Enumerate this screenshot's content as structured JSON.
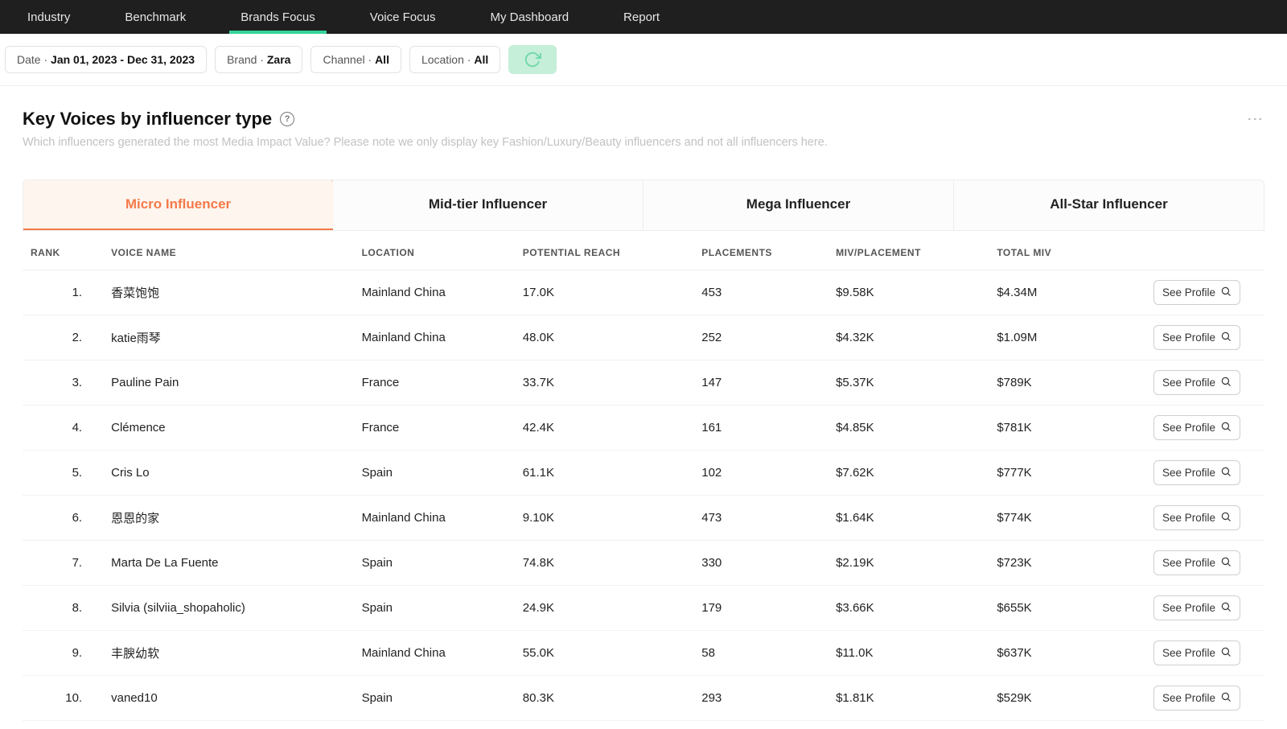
{
  "nav": {
    "items": [
      "Industry",
      "Benchmark",
      "Brands Focus",
      "Voice Focus",
      "My Dashboard",
      "Report"
    ],
    "active_index": 2
  },
  "filters": {
    "date": {
      "label": "Date",
      "value": "Jan 01, 2023 - Dec 31, 2023"
    },
    "brand": {
      "label": "Brand",
      "value": "Zara"
    },
    "channel": {
      "label": "Channel",
      "value": "All"
    },
    "location": {
      "label": "Location",
      "value": "All"
    }
  },
  "page": {
    "title": "Key Voices by influencer type",
    "subtitle": "Which influencers generated the most Media Impact Value? Please note we only display key Fashion/Luxury/Beauty influencers and not all influencers here."
  },
  "tabs": {
    "items": [
      "Micro Influencer",
      "Mid-tier Influencer",
      "Mega Influencer",
      "All-Star Influencer"
    ],
    "active_index": 0,
    "active_color": "#f37a49",
    "active_bg": "#fff5ef"
  },
  "table": {
    "columns": [
      "RANK",
      "VOICE NAME",
      "LOCATION",
      "POTENTIAL REACH",
      "PLACEMENTS",
      "MIV/PLACEMENT",
      "TOTAL MIV"
    ],
    "profile_button_label": "See Profile",
    "rows": [
      {
        "rank": "1.",
        "name": "香菜饱饱",
        "location": "Mainland China",
        "reach": "17.0K",
        "placements": "453",
        "miv_placement": "$9.58K",
        "total_miv": "$4.34M"
      },
      {
        "rank": "2.",
        "name": "katie雨琴",
        "location": "Mainland China",
        "reach": "48.0K",
        "placements": "252",
        "miv_placement": "$4.32K",
        "total_miv": "$1.09M"
      },
      {
        "rank": "3.",
        "name": "Pauline Pain",
        "location": "France",
        "reach": "33.7K",
        "placements": "147",
        "miv_placement": "$5.37K",
        "total_miv": "$789K"
      },
      {
        "rank": "4.",
        "name": "Clémence",
        "location": "France",
        "reach": "42.4K",
        "placements": "161",
        "miv_placement": "$4.85K",
        "total_miv": "$781K"
      },
      {
        "rank": "5.",
        "name": "Cris Lo",
        "location": "Spain",
        "reach": "61.1K",
        "placements": "102",
        "miv_placement": "$7.62K",
        "total_miv": "$777K"
      },
      {
        "rank": "6.",
        "name": "恩恩的家",
        "location": "Mainland China",
        "reach": "9.10K",
        "placements": "473",
        "miv_placement": "$1.64K",
        "total_miv": "$774K"
      },
      {
        "rank": "7.",
        "name": "Marta De La Fuente",
        "location": "Spain",
        "reach": "74.8K",
        "placements": "330",
        "miv_placement": "$2.19K",
        "total_miv": "$723K"
      },
      {
        "rank": "8.",
        "name": "Silvia (silviia_shopaholic)",
        "location": "Spain",
        "reach": "24.9K",
        "placements": "179",
        "miv_placement": "$3.66K",
        "total_miv": "$655K"
      },
      {
        "rank": "9.",
        "name": "丰腴幼软",
        "location": "Mainland China",
        "reach": "55.0K",
        "placements": "58",
        "miv_placement": "$11.0K",
        "total_miv": "$637K"
      },
      {
        "rank": "10.",
        "name": "vaned10",
        "location": "Spain",
        "reach": "80.3K",
        "placements": "293",
        "miv_placement": "$1.81K",
        "total_miv": "$529K"
      }
    ]
  },
  "colors": {
    "nav_bg": "#1f1f1f",
    "nav_active_underline": "#34d399",
    "tab_active_text": "#f37a49",
    "border": "#eeeeee",
    "muted_text": "#c2c2c2"
  }
}
